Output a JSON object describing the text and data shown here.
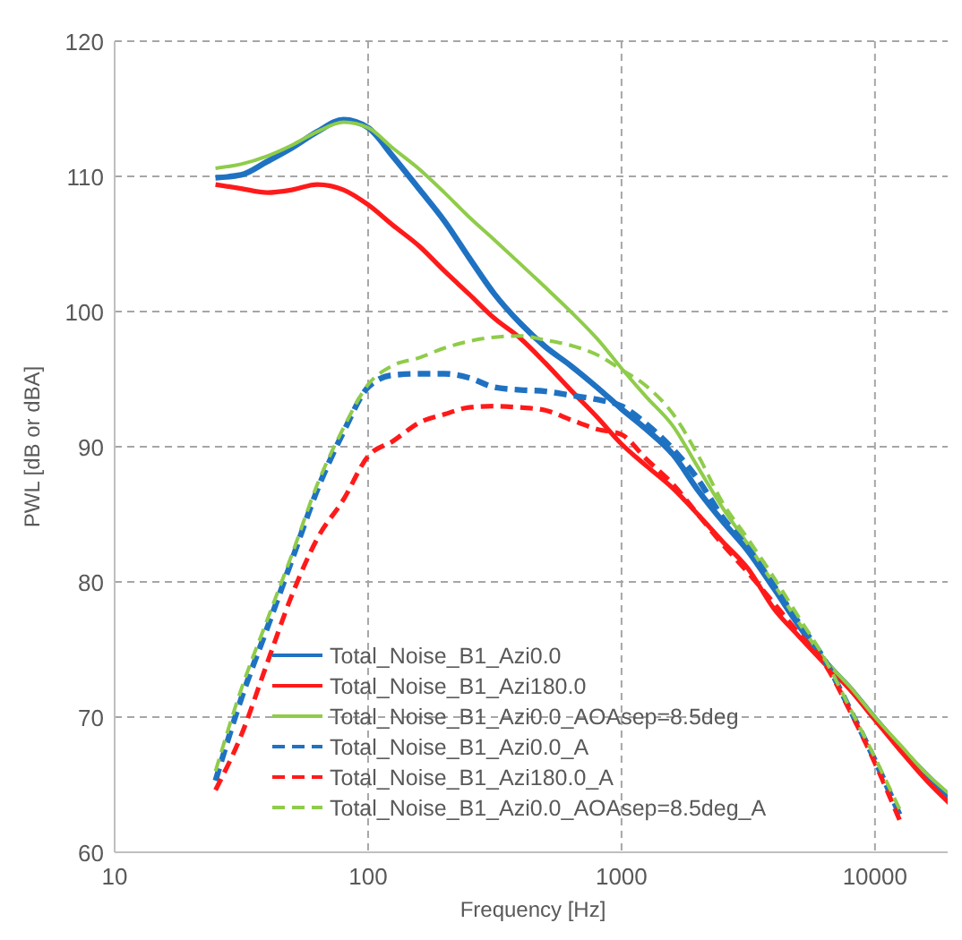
{
  "chart_data": {
    "type": "line",
    "xlabel": "Frequency [Hz]",
    "ylabel": "PWL [dB or dBA]",
    "log": "x",
    "grid": true,
    "legend": "bottom left",
    "x": [
      25,
      31.5,
      40,
      50,
      63,
      80,
      100,
      125,
      160,
      200,
      250,
      315,
      400,
      500,
      630,
      800,
      1000,
      1250,
      1600,
      2000,
      2500,
      3150,
      4000,
      5000,
      6300,
      8000,
      10000,
      12500,
      16000,
      20000
    ],
    "xlim": [
      10,
      20000
    ],
    "xticks": [
      10,
      100,
      1000,
      10000
    ],
    "ylim": [
      60,
      120
    ],
    "yticks": [
      60,
      70,
      80,
      90,
      100,
      110,
      120
    ],
    "series": [
      {
        "name": "Total_Noise_B1_Azi0.0",
        "color": "#1f72c2",
        "line_style": "solid",
        "values": [
          109.9,
          110.1,
          111.1,
          112.1,
          113.3,
          114.2,
          113.6,
          111.5,
          109.0,
          106.7,
          104.0,
          101.3,
          99.1,
          97.4,
          96.0,
          94.4,
          92.8,
          91.3,
          89.4,
          86.8,
          84.5,
          82.3,
          79.5,
          76.8,
          74.2,
          72.1,
          69.9,
          67.8,
          65.7,
          64.0
        ]
      },
      {
        "name": "Total_Noise_B1_Azi180.0",
        "color": "#ff1a1a",
        "line_style": "solid",
        "values": [
          109.4,
          109.1,
          108.8,
          109.0,
          109.4,
          109.0,
          107.9,
          106.4,
          104.8,
          103.0,
          101.3,
          99.5,
          98.0,
          96.2,
          94.2,
          92.2,
          90.2,
          88.6,
          86.9,
          85.0,
          83.0,
          81.0,
          78.0,
          76.0,
          74.0,
          72.0,
          69.8,
          67.6,
          65.3,
          63.5
        ]
      },
      {
        "name": "Total_Noise_B1_Azi0.0_AOAsep=8.5deg",
        "color": "#8fcc4a",
        "line_style": "solid",
        "values": [
          110.6,
          110.9,
          111.5,
          112.3,
          113.3,
          114.0,
          113.6,
          112.1,
          110.5,
          108.8,
          107.0,
          105.3,
          103.5,
          101.8,
          100.0,
          98.0,
          95.8,
          93.7,
          91.5,
          88.5,
          85.5,
          82.8,
          79.8,
          77.0,
          74.3,
          72.2,
          70.0,
          68.0,
          65.8,
          64.2
        ]
      },
      {
        "name": "Total_Noise_B1_Azi0.0_A",
        "color": "#1f72c2",
        "line_style": "dashed",
        "values": [
          65.3,
          71.3,
          76.6,
          81.6,
          86.8,
          91.1,
          94.4,
          95.3,
          95.4,
          95.4,
          95.1,
          94.4,
          94.2,
          94.1,
          93.8,
          93.5,
          93.0,
          91.7,
          89.8,
          87.6,
          84.8,
          82.5,
          79.7,
          77.0,
          74.3,
          70.5,
          66.8,
          62.8,
          null,
          null
        ]
      },
      {
        "name": "Total_Noise_B1_Azi180.0_A",
        "color": "#ff1a1a",
        "line_style": "dashed",
        "values": [
          64.6,
          68.6,
          74.0,
          79.0,
          83.2,
          86.1,
          89.3,
          90.4,
          91.8,
          92.4,
          92.9,
          93.0,
          92.9,
          92.7,
          92.0,
          91.3,
          90.9,
          89.1,
          87.2,
          85.0,
          82.8,
          80.7,
          78.4,
          76.2,
          74.0,
          70.4,
          66.6,
          62.4,
          null,
          null
        ]
      },
      {
        "name": "Total_Noise_B1_Azi0.0_AOAsep=8.5deg_A",
        "color": "#8fcc4a",
        "line_style": "dashed",
        "values": [
          66.0,
          72.0,
          77.2,
          82.0,
          87.2,
          91.4,
          94.6,
          96.0,
          96.6,
          97.3,
          97.8,
          98.1,
          98.2,
          97.9,
          97.5,
          96.8,
          95.7,
          94.5,
          92.4,
          89.4,
          85.9,
          83.2,
          80.3,
          77.4,
          74.4,
          70.6,
          67.0,
          63.2,
          null,
          null
        ]
      }
    ]
  }
}
